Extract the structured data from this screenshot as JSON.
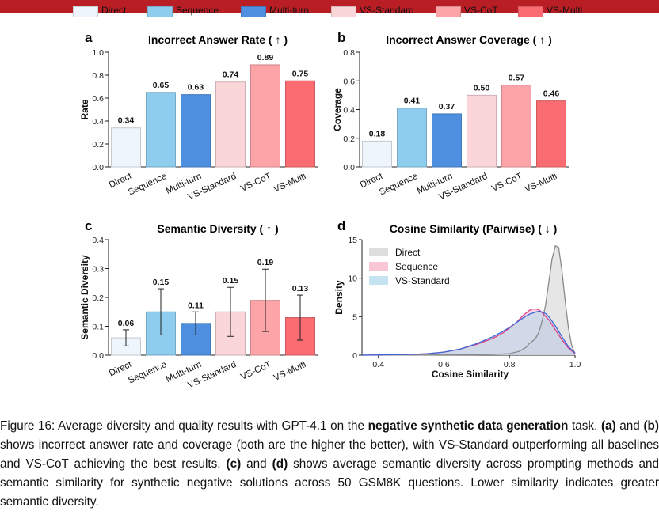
{
  "legend": [
    {
      "label": "Direct",
      "color": "#eef5fc"
    },
    {
      "label": "Sequence",
      "color": "#8ecdee"
    },
    {
      "label": "Multi-turn",
      "color": "#4f8fdf"
    },
    {
      "label": "VS-Standard",
      "color": "#fbd6d9"
    },
    {
      "label": "VS-CoT",
      "color": "#fca4a8"
    },
    {
      "label": "VS-Multi",
      "color": "#fa6b72"
    }
  ],
  "chart_data": [
    {
      "type": "bar",
      "letter": "a",
      "title": "Incorrect Answer Rate ( ↑ )",
      "ylabel": "Rate",
      "ylim": [
        0,
        1.0
      ],
      "yticks": [
        "0.0",
        "0.2",
        "0.4",
        "0.6",
        "0.8",
        "1.0"
      ],
      "categories": [
        "Direct",
        "Sequence",
        "Multi-turn",
        "VS-Standard",
        "VS-CoT",
        "VS-Multi"
      ],
      "values": [
        0.34,
        0.65,
        0.63,
        0.74,
        0.89,
        0.75
      ],
      "value_labels": [
        "0.34",
        "0.65",
        "0.63",
        "0.74",
        "0.89",
        "0.75"
      ]
    },
    {
      "type": "bar",
      "letter": "b",
      "title": "Incorrect Answer Coverage ( ↑ )",
      "ylabel": "Coverage",
      "ylim": [
        0,
        0.8
      ],
      "yticks": [
        "0.0",
        "0.2",
        "0.4",
        "0.6",
        "0.8"
      ],
      "categories": [
        "Direct",
        "Sequence",
        "Multi-turn",
        "VS-Standard",
        "VS-CoT",
        "VS-Multi"
      ],
      "values": [
        0.18,
        0.41,
        0.37,
        0.5,
        0.57,
        0.46
      ],
      "value_labels": [
        "0.18",
        "0.41",
        "0.37",
        "0.50",
        "0.57",
        "0.46"
      ]
    },
    {
      "type": "bar",
      "letter": "c",
      "title": "Semantic Diversity ( ↑ )",
      "ylabel": "Semantic Diversity",
      "ylim": [
        0,
        0.4
      ],
      "yticks": [
        "0.0",
        "0.1",
        "0.2",
        "0.3",
        "0.4"
      ],
      "categories": [
        "Direct",
        "Sequence",
        "Multi-turn",
        "VS-Standard",
        "VS-CoT",
        "VS-Multi"
      ],
      "values": [
        0.06,
        0.15,
        0.11,
        0.15,
        0.19,
        0.13
      ],
      "value_labels": [
        "0.06",
        "0.15",
        "0.11",
        "0.15",
        "0.19",
        "0.13"
      ],
      "errors": [
        0.028,
        0.08,
        0.04,
        0.085,
        0.108,
        0.078
      ]
    },
    {
      "type": "line",
      "letter": "d",
      "title": "Cosine Similarity (Pairwise) ( ↓ )",
      "xlabel": "Cosine Similarity",
      "ylabel": "Density",
      "xlim": [
        0.35,
        1.0
      ],
      "ylim": [
        0,
        15
      ],
      "xticks": [
        "0.4",
        "0.6",
        "0.8",
        "1.0"
      ],
      "xtick_values": [
        0.4,
        0.6,
        0.8,
        1.0
      ],
      "yticks": [
        "0",
        "5",
        "10",
        "15"
      ],
      "ytick_values": [
        0,
        5,
        10,
        15
      ],
      "series": [
        {
          "name": "Direct",
          "fill": "#d6d6d6",
          "line": "#8a8a8a",
          "x": [
            0.35,
            0.7,
            0.75,
            0.8,
            0.83,
            0.85,
            0.86,
            0.87,
            0.88,
            0.89,
            0.9,
            0.91,
            0.92,
            0.93,
            0.94,
            0.95,
            0.96,
            0.97,
            0.98,
            0.99,
            1.0
          ],
          "y": [
            0,
            0.05,
            0.1,
            0.2,
            0.5,
            1.0,
            1.5,
            1.8,
            2.2,
            3.0,
            4.5,
            6.5,
            9.5,
            12.5,
            14.2,
            14.0,
            11.0,
            7.0,
            3.5,
            1.2,
            0.2
          ]
        },
        {
          "name": "Sequence",
          "fill": "#f8b8cc",
          "line": "#e0408a",
          "x": [
            0.35,
            0.5,
            0.55,
            0.6,
            0.65,
            0.7,
            0.75,
            0.78,
            0.8,
            0.82,
            0.84,
            0.86,
            0.87,
            0.88,
            0.89,
            0.9,
            0.92,
            0.94,
            0.96,
            0.98,
            1.0
          ],
          "y": [
            0,
            0.1,
            0.2,
            0.4,
            0.8,
            1.4,
            2.2,
            2.9,
            3.5,
            4.2,
            5.1,
            5.8,
            6.0,
            6.0,
            5.9,
            5.5,
            4.6,
            3.3,
            2.0,
            0.9,
            0.2
          ]
        },
        {
          "name": "VS-Standard",
          "fill": "#b6dcee",
          "line": "#3d68d8",
          "x": [
            0.35,
            0.5,
            0.55,
            0.6,
            0.65,
            0.7,
            0.75,
            0.78,
            0.8,
            0.82,
            0.84,
            0.86,
            0.88,
            0.89,
            0.9,
            0.91,
            0.92,
            0.94,
            0.96,
            0.98,
            1.0
          ],
          "y": [
            0,
            0.1,
            0.2,
            0.4,
            0.8,
            1.5,
            2.4,
            3.1,
            3.6,
            4.2,
            4.8,
            5.3,
            5.6,
            5.7,
            5.6,
            5.4,
            5.0,
            3.8,
            2.4,
            1.1,
            0.3
          ]
        }
      ]
    }
  ],
  "caption": {
    "p1": "Figure 16: Average diversity and quality results with GPT-4.1 on the ",
    "b1": "negative synthetic data generation",
    "p2": " task. ",
    "b2": "(a)",
    "p3": " and ",
    "b3": "(b)",
    "p4": " shows incorrect answer rate and coverage (both are the higher the better), with VS-Standard outperforming all baselines and VS-CoT achieving the best results. ",
    "b4": "(c)",
    "p5": " and ",
    "b5": "(d)",
    "p6": " shows average semantic diversity across prompting methods and semantic similarity for synthetic negative solutions across 50 GSM8K questions. Lower similarity indicates greater semantic diversity."
  }
}
